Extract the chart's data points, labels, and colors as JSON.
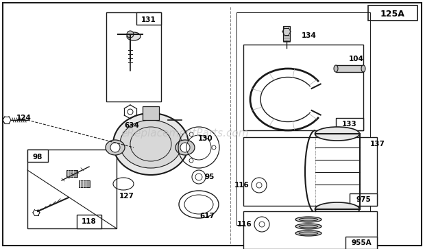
{
  "bg_color": "#ffffff",
  "lc": "#1a1a1a",
  "watermark_text": "eReplacementParts.com",
  "watermark_color": "#bbbbbb",
  "watermark_fontsize": 11,
  "title_label": "125A"
}
